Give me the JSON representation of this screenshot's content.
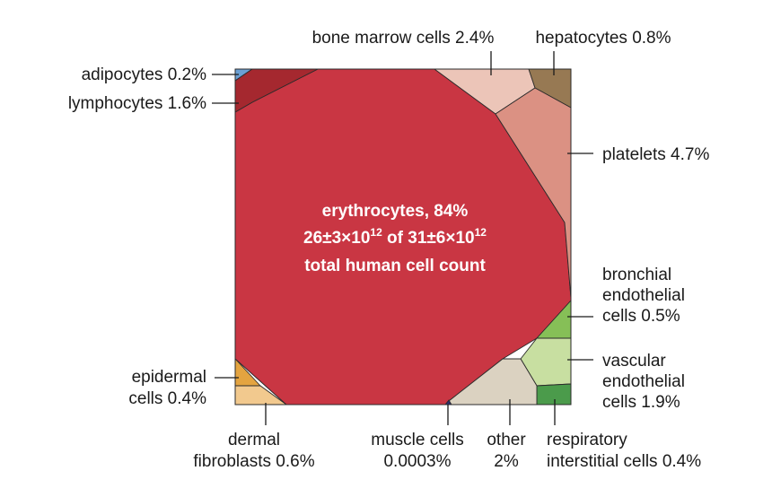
{
  "chart_data": {
    "type": "voronoi treemap",
    "title": "",
    "center_label": {
      "line1": "erythrocytes, 84%",
      "line2_a": "26±3×10",
      "line2_a_exp": "12",
      "line2_b": " of ",
      "line2_c": "31±6×10",
      "line2_c_exp": "12",
      "line3": "total human cell count"
    },
    "cells": [
      {
        "name": "erythrocytes",
        "percent": 84,
        "color": "#c93643"
      },
      {
        "name": "adipocytes",
        "percent": 0.2,
        "color": "#6b9fd3"
      },
      {
        "name": "lymphocytes",
        "percent": 1.6,
        "color": "#a5282f"
      },
      {
        "name": "bone marrow cells",
        "percent": 2.4,
        "color": "#ecc5b8"
      },
      {
        "name": "hepatocytes",
        "percent": 0.8,
        "color": "#977953"
      },
      {
        "name": "platelets",
        "percent": 4.7,
        "color": "#db9183"
      },
      {
        "name": "bronchial endothelial cells",
        "percent": 0.5,
        "color": "#86bf57"
      },
      {
        "name": "vascular endothelial cells",
        "percent": 1.9,
        "color": "#c8dfa1"
      },
      {
        "name": "respiratory interstitial cells",
        "percent": 0.4,
        "color": "#4b9b4b"
      },
      {
        "name": "other",
        "percent": 2,
        "color": "#dbd2c1"
      },
      {
        "name": "muscle cells",
        "percent": 0.0003,
        "color": "#2d2e6c"
      },
      {
        "name": "dermal fibroblasts",
        "percent": 0.6,
        "color": "#f2c98e"
      },
      {
        "name": "epidermal cells",
        "percent": 0.4,
        "color": "#e4a440"
      }
    ],
    "labels": {
      "adipocytes": [
        "adipocytes 0.2%"
      ],
      "lymphocytes": [
        "lymphocytes 1.6%"
      ],
      "bone_marrow": [
        "bone marrow cells 2.4%"
      ],
      "hepatocytes": [
        "hepatocytes 0.8%"
      ],
      "platelets": [
        "platelets 4.7%"
      ],
      "bronchial": [
        "bronchial",
        "endothelial",
        "cells 0.5%"
      ],
      "vascular": [
        "vascular",
        "endothelial",
        "cells 1.9%"
      ],
      "respiratory": [
        "respiratory",
        "interstitial cells 0.4%"
      ],
      "other": [
        "other",
        "2%"
      ],
      "muscle": [
        "muscle cells",
        "0.0003%"
      ],
      "dermal": [
        "dermal",
        "fibroblasts 0.6%"
      ],
      "epidermal": [
        "epidermal",
        "cells 0.4%"
      ]
    }
  }
}
